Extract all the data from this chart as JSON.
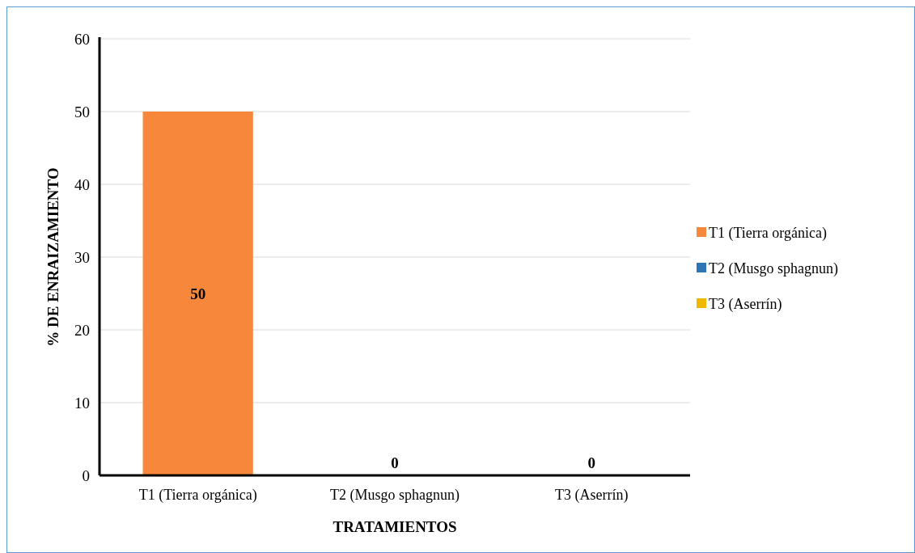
{
  "chart_data": {
    "type": "bar",
    "xlabel": "TRATAMIENTOS",
    "ylabel": "% DE ENRAIZAMIENTO",
    "categories": [
      "T1 (Tierra orgánica)",
      "T2 (Musgo sphagnun)",
      "T3 (Aserrín)"
    ],
    "series": [
      {
        "name": "T1 (Tierra orgánica)",
        "color": "#f7883b",
        "values": [
          50,
          null,
          null
        ]
      },
      {
        "name": "T2 (Musgo sphagnun)",
        "color": "#2e75b6",
        "values": [
          null,
          0,
          null
        ]
      },
      {
        "name": "T3 (Aserrín)",
        "color": "#f2b800",
        "values": [
          null,
          null,
          0
        ]
      }
    ],
    "ylim": [
      0,
      60
    ],
    "yticks": [
      0,
      10,
      20,
      30,
      40,
      50,
      60
    ],
    "grid": "y",
    "legend": "right",
    "data_labels": true
  }
}
